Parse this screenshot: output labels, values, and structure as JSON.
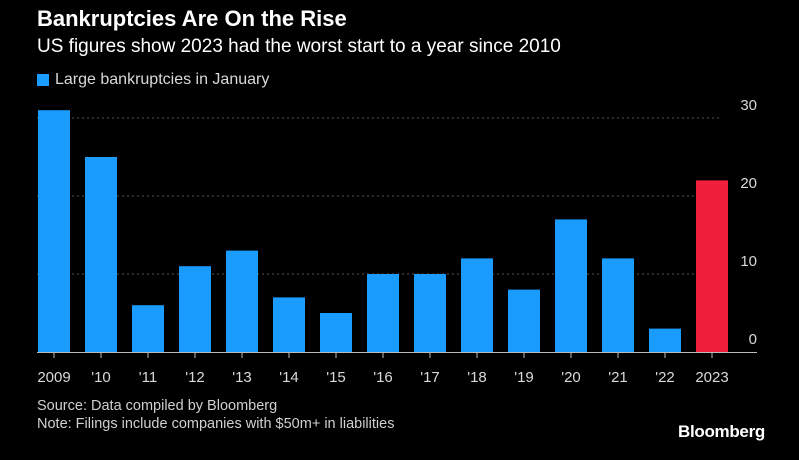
{
  "header": {
    "title": "Bankruptcies Are On the Rise",
    "subtitle": "US figures show 2023 had the worst start to a year since 2010"
  },
  "legend": {
    "label": "Large bankruptcies in January"
  },
  "footer": {
    "source": "Source: Data compiled by Bloomberg",
    "note": "Note: Filings include companies with $50m+ in liabilities",
    "brand": "Bloomberg"
  },
  "colors": {
    "bar": "#1a9cff",
    "highlight": "#f0203c",
    "grid": "#555555",
    "background": "#000000"
  },
  "chart_data": {
    "type": "bar",
    "title": "Bankruptcies Are On the Rise",
    "subtitle": "US figures show 2023 had the worst start to a year since 2010",
    "categories": [
      "2009",
      "'10",
      "'11",
      "'12",
      "'13",
      "'14",
      "'15",
      "'16",
      "'17",
      "'18",
      "'19",
      "'20",
      "'21",
      "'22",
      "2023"
    ],
    "series": [
      {
        "name": "Large bankruptcies in January",
        "values": [
          31,
          25,
          6,
          11,
          13,
          7,
          5,
          10,
          10,
          12,
          8,
          17,
          12,
          3,
          22
        ]
      }
    ],
    "highlight_index": 14,
    "ylim": [
      0,
      30
    ],
    "yticks": [
      0,
      10,
      20,
      30
    ],
    "ytick_labels": [
      "0",
      "10",
      "20",
      "30"
    ],
    "y_axis_side": "right",
    "grid": true,
    "xlabel": "",
    "ylabel": ""
  }
}
